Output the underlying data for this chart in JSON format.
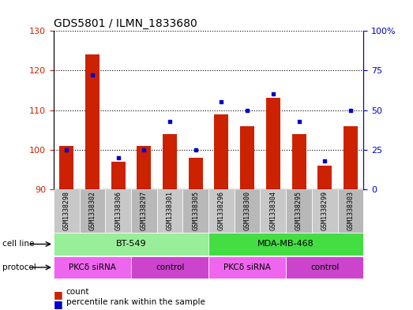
{
  "title": "GDS5801 / ILMN_1833680",
  "samples": [
    "GSM1338298",
    "GSM1338302",
    "GSM1338306",
    "GSM1338297",
    "GSM1338301",
    "GSM1338305",
    "GSM1338296",
    "GSM1338300",
    "GSM1338304",
    "GSM1338295",
    "GSM1338299",
    "GSM1338303"
  ],
  "counts": [
    101,
    124,
    97,
    101,
    104,
    98,
    109,
    106,
    113,
    104,
    96,
    106
  ],
  "percentile_pct": [
    25,
    72,
    20,
    25,
    43,
    25,
    55,
    50,
    60,
    43,
    18,
    50
  ],
  "ylim_left": [
    90,
    130
  ],
  "ylim_right": [
    0,
    100
  ],
  "yticks_left": [
    90,
    100,
    110,
    120,
    130
  ],
  "yticks_right": [
    0,
    25,
    50,
    75,
    100
  ],
  "ytick_right_labels": [
    "0",
    "25",
    "50",
    "75",
    "100%"
  ],
  "bar_color": "#cc2200",
  "dot_color": "#0000cc",
  "cell_line_groups": [
    {
      "label": "BT-549",
      "start": 0,
      "end": 6,
      "color": "#99ee99"
    },
    {
      "label": "MDA-MB-468",
      "start": 6,
      "end": 12,
      "color": "#44dd44"
    }
  ],
  "protocol_groups": [
    {
      "label": "PKCδ siRNA",
      "start": 0,
      "end": 3,
      "color": "#ee66ee"
    },
    {
      "label": "control",
      "start": 3,
      "end": 6,
      "color": "#cc44cc"
    },
    {
      "label": "PKCδ siRNA",
      "start": 6,
      "end": 9,
      "color": "#ee66ee"
    },
    {
      "label": "control",
      "start": 9,
      "end": 12,
      "color": "#cc44cc"
    }
  ],
  "cell_line_label": "cell line",
  "protocol_label": "protocol",
  "legend_count": "count",
  "legend_percentile": "percentile rank within the sample"
}
